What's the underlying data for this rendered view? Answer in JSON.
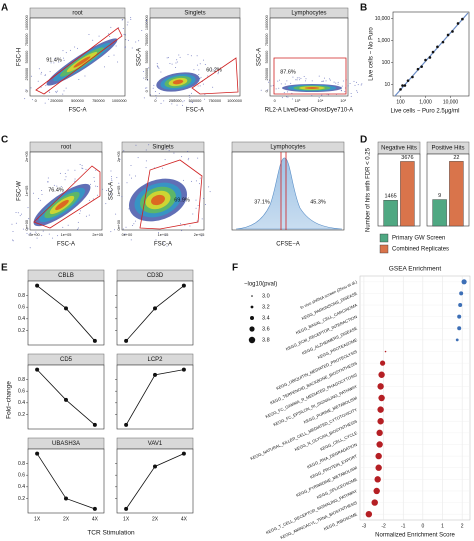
{
  "panel_labels": [
    "A",
    "B",
    "C",
    "D",
    "E",
    "F"
  ],
  "flow_a": [
    {
      "title": "root",
      "xlabel": "FSC-A",
      "ylabel": "FSC-H",
      "gates": [
        "91.4%"
      ],
      "xticks": [
        "0",
        "250000",
        "500000",
        "750000",
        "1000000"
      ],
      "yticks": [
        "0",
        "250000",
        "500000",
        "750000",
        "1000000"
      ]
    },
    {
      "title": "Singlets",
      "xlabel": "FSC-A",
      "ylabel": "SSC-A",
      "gates": [
        "60.2%"
      ],
      "xticks": [
        "0",
        "250000",
        "500000",
        "750000",
        "1000000"
      ],
      "yticks": [
        "0",
        "250000",
        "500000",
        "750000",
        "1000000"
      ]
    },
    {
      "title": "Lymphocytes",
      "xlabel": "RL2-A LiveDead-GhostDye710-A",
      "ylabel": "SSC-A",
      "gates": [
        "87.6%"
      ],
      "xticks": [
        "0",
        "10³",
        "10⁴",
        "10⁵"
      ],
      "yticks": [
        "0",
        "250000",
        "500000",
        "750000",
        "1000000"
      ]
    }
  ],
  "flow_c": [
    {
      "title": "root",
      "xlabel": "FSC-A",
      "ylabel": "FSC-W",
      "gates": [
        "76.4%"
      ],
      "xticks": [
        "0e+00",
        "1e+05",
        "2e+05"
      ],
      "yticks": [
        "0e+00",
        "1e+05",
        "2e+05"
      ]
    },
    {
      "title": "Singlets",
      "xlabel": "FSC-A",
      "ylabel": "SSC-A",
      "gates": [
        "69.9%"
      ],
      "xticks": [
        "0e+00",
        "1e+05",
        "2e+05"
      ],
      "yticks": [
        "0e+00",
        "1e+05",
        "2e+05"
      ]
    },
    {
      "title": "Lymphocytes",
      "xlabel": "CFSE−A",
      "gates": [
        "37.1%",
        "45.3%"
      ]
    }
  ],
  "chart_data": [
    {
      "type": "scatter",
      "log_scale": true,
      "xlabel": "Live cells − Puro 2.5µg/ml",
      "ylabel": "Live cells − No Puro",
      "x": [
        100,
        120,
        150,
        200,
        300,
        500,
        700,
        1000,
        1500,
        2000,
        3000,
        5000,
        8000,
        12000,
        20000,
        30000
      ],
      "values": [
        6,
        9,
        9,
        15,
        22,
        50,
        65,
        130,
        170,
        300,
        520,
        850,
        1800,
        2600,
        6000,
        9500
      ],
      "trend_line": {
        "x": [
          60,
          50000
        ],
        "y": [
          3,
          18000
        ]
      },
      "xlim": [
        50,
        55000
      ],
      "ylim": [
        3,
        20000
      ],
      "xticks": [
        100,
        {
          "value": 1000,
          "label": "1,000"
        },
        {
          "value": 10000,
          "label": "10,000"
        }
      ],
      "yticks": [
        10,
        100,
        {
          "value": 1000,
          "label": "1,000"
        },
        {
          "value": 10000,
          "label": "10,000"
        }
      ],
      "color": "#111111",
      "line_color": "#6a8cc7"
    },
    {
      "type": "bar",
      "ylabel": "Number of hits with FDR < 0.25",
      "categories": [
        "Negative Hits",
        "Positive Hits"
      ],
      "ylims": [
        [
          0,
          4100
        ],
        [
          0,
          24.5
        ]
      ],
      "series": [
        {
          "name": "Primary GW Screen",
          "color": "#4fa882",
          "values": [
            1465,
            9
          ]
        },
        {
          "name": "Combined Replicates",
          "color": "#d9744b",
          "values": [
            3676,
            22
          ]
        }
      ]
    },
    {
      "type": "line",
      "xlabel": "TCR Stimulation",
      "ylabel": "Fold−change",
      "categories": [
        "1X",
        "2X",
        "4X"
      ],
      "ylim": [
        -0.05,
        1.05
      ],
      "yticks": [
        0.2,
        0.4,
        0.6,
        0.8
      ],
      "color": "#111111",
      "series": [
        {
          "name": "CBLB",
          "values": [
            0.97,
            0.58,
            0.02
          ]
        },
        {
          "name": "CD3D",
          "values": [
            0.02,
            0.58,
            0.97
          ]
        },
        {
          "name": "CD5",
          "values": [
            0.97,
            0.45,
            0.02
          ]
        },
        {
          "name": "LCP2",
          "values": [
            0.02,
            0.88,
            0.97
          ]
        },
        {
          "name": "UBASH3A",
          "values": [
            0.97,
            0.2,
            0.02
          ]
        },
        {
          "name": "VAV1",
          "values": [
            0.02,
            0.75,
            0.97
          ]
        }
      ]
    },
    {
      "type": "dot",
      "title": "GSEA Enrichment",
      "xlabel": "Normalized Enrichment Score",
      "categories": [
        "In vivo shRNA screen (Zhou et al.)",
        "KEGG_PARKINSONS_DISEASE",
        "KEGG_BASAL_CELL_CARCINOMA",
        "KEGG_ECM_RECEPTOR_INTERACTION",
        "KEGG_ALZHEIMERS_DISEASE",
        "KEGG_PROTEASOME",
        "KEGG_UBIQUITIN_MEDIATED_PROTEOLYSIS",
        "KEGG_TERPENOID_BACKBONE_BIOSYNTHESIS",
        "KEGG_FC_GAMMA_R_MEDIATED_PHAGOCYTOSIS",
        "KEGG_FC_EPSILON_RI_SIGNALING_PATHWAY",
        "KEGG_PURINE_METABOLISM",
        "KEGG_NATURAL_KILLER_CELL_MEDIATED_CYTOTOXICITY",
        "KEGG_N_GLYCAN_BIOSYNTHESIS",
        "KEGG_CELL_CYCLE",
        "KEGG_RNA_DEGRADATION",
        "KEGG_PROTEIN_EXPORT",
        "KEGG_PYRIMIDINE_METABOLISM",
        "KEGG_SPLICEOSOME",
        "KEGG_T_CELL_RECEPTOR_SIGNALING_PATHWAY",
        "KEGG_AMINOACYL_TRNA_BIOSYNTHESIS",
        "KEGG_RIBOSOME"
      ],
      "values": [
        2.1,
        1.95,
        1.9,
        1.85,
        1.85,
        1.75,
        -1.9,
        -2.05,
        -2.1,
        -2.15,
        -2.1,
        -2.15,
        -2.15,
        -2.2,
        -2.2,
        -2.25,
        -2.25,
        -2.3,
        -2.35,
        -2.45,
        -2.75
      ],
      "sizes": [
        3.6,
        3.4,
        3.4,
        3.4,
        3.4,
        3.2,
        3,
        3.6,
        3.8,
        3.8,
        3.8,
        3.8,
        3.8,
        3.8,
        3.8,
        3.8,
        3.8,
        3.8,
        3.8,
        3.8,
        3.8
      ],
      "size_legend": {
        "title": "−log10(pval)",
        "values": [
          {
            "value": 3,
            "label": "3.0"
          },
          3.2,
          3.4,
          3.6,
          3.8
        ]
      },
      "xlim": [
        -3.2,
        2.4
      ],
      "xticks": [
        -3,
        -2,
        -1,
        0,
        1,
        2
      ],
      "grid": true,
      "positive_color": "#3d6fb6",
      "negative_color": "#b51f24"
    }
  ]
}
